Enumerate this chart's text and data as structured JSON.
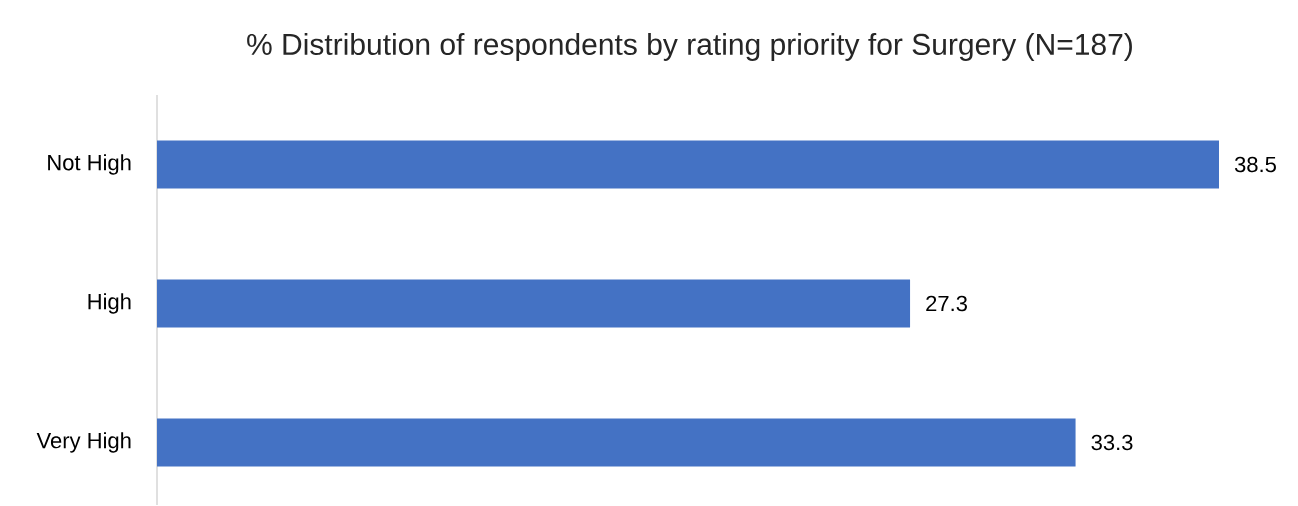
{
  "chart_data": {
    "type": "bar",
    "orientation": "horizontal",
    "title": "% Distribution of respondents by rating priority for Surgery (N=187)",
    "categories": [
      "Not High",
      "High",
      "Very High"
    ],
    "values": [
      38.5,
      27.3,
      33.3
    ],
    "color": "#4472c4",
    "data_labels": true
  }
}
